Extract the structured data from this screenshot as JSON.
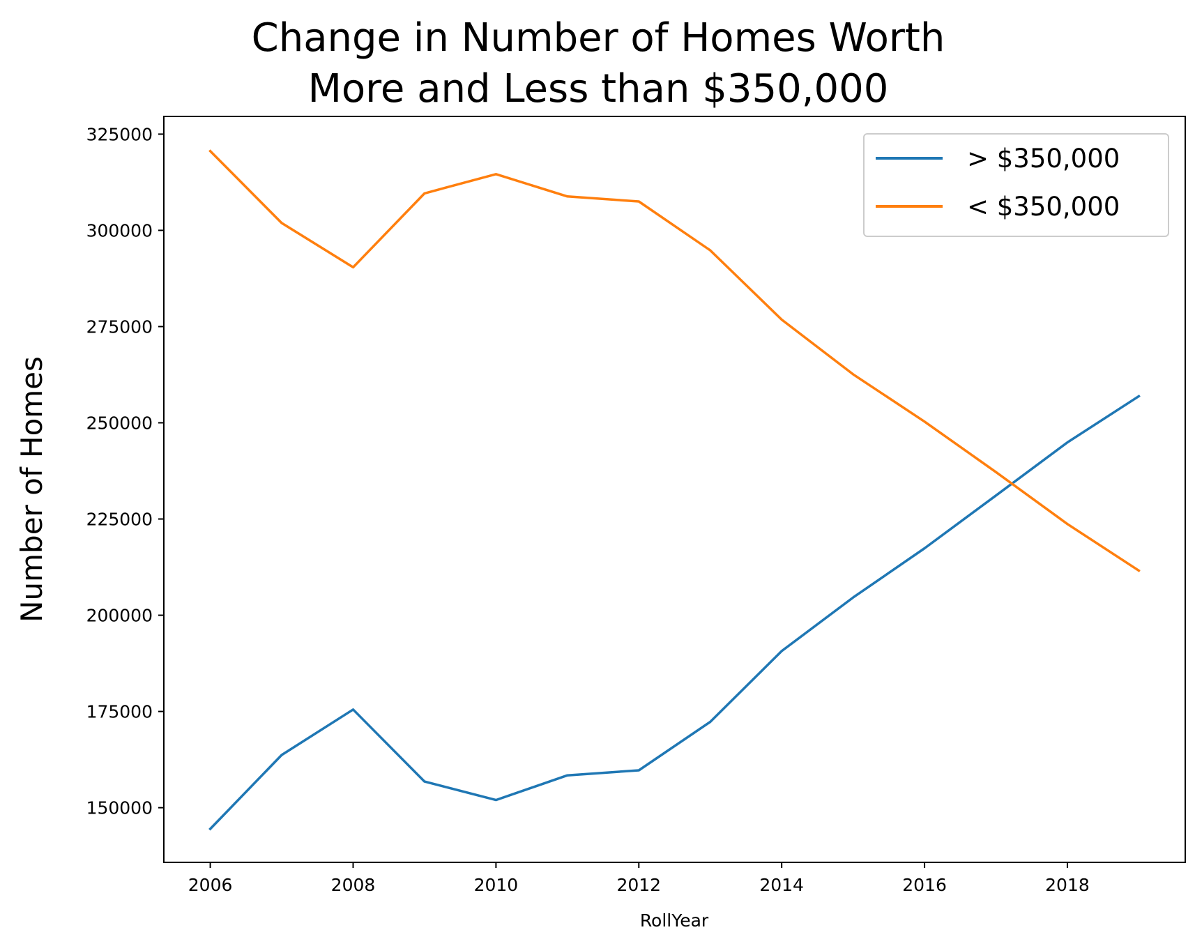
{
  "chart_data": {
    "type": "line",
    "title_lines": [
      "Change in Number of Homes Worth",
      "More and Less than $350,000"
    ],
    "xlabel": "RollYear",
    "ylabel": "Number of Homes",
    "x": [
      2006,
      2007,
      2008,
      2009,
      2010,
      2011,
      2012,
      2013,
      2014,
      2015,
      2016,
      2017,
      2018,
      2019
    ],
    "xlim": [
      2005.35,
      2019.65
    ],
    "ylim": [
      135800,
      329600
    ],
    "xticks": [
      2006,
      2008,
      2010,
      2012,
      2014,
      2016,
      2018
    ],
    "yticks": [
      150000,
      175000,
      200000,
      225000,
      250000,
      275000,
      300000,
      325000
    ],
    "series": [
      {
        "name": "> $350,000",
        "color": "#1f77b4",
        "values": [
          144500,
          163700,
          175500,
          156800,
          152000,
          158400,
          159700,
          172300,
          190700,
          204600,
          217400,
          231100,
          244900,
          256900
        ]
      },
      {
        "name": "< $350,000",
        "color": "#ff7f0e",
        "values": [
          320600,
          301900,
          290400,
          309600,
          314600,
          308800,
          307500,
          294800,
          276800,
          262600,
          250300,
          237200,
          223700,
          211600
        ]
      }
    ],
    "grid": false,
    "legend_position": "top-right"
  }
}
